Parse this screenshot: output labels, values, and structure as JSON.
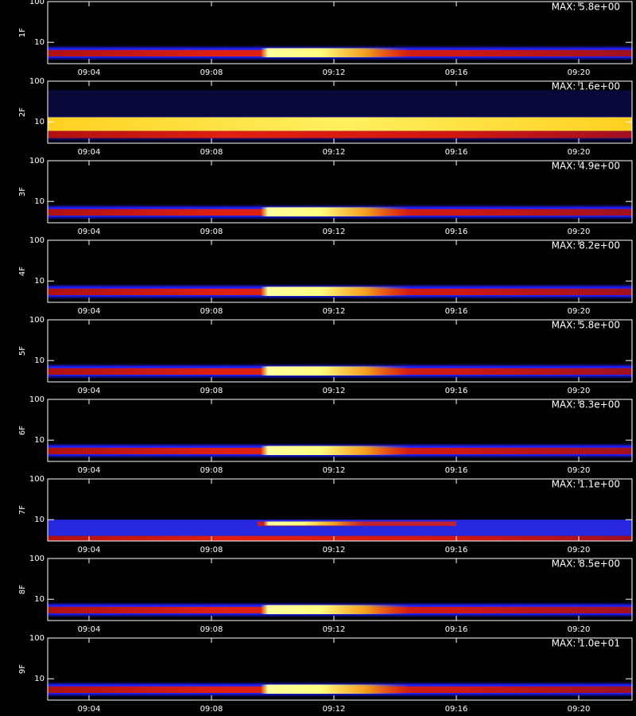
{
  "chart_data": [
    {
      "type": "spectrogram",
      "ylabel": "1F",
      "max_label": "MAX: 5.8e+00",
      "log_scale": true,
      "ylim": [
        3,
        100
      ],
      "yticks": [
        10,
        100
      ],
      "xlim": [
        542.65,
        561.74
      ],
      "xticks": [
        {
          "value": 544,
          "label": "09:04"
        },
        {
          "value": 548,
          "label": "09:08"
        },
        {
          "value": 552,
          "label": "09:12"
        },
        {
          "value": 556,
          "label": "09:16"
        },
        {
          "value": 560,
          "label": "09:20"
        }
      ]
    },
    {
      "type": "spectrogram",
      "ylabel": "2F",
      "max_label": "MAX: 1.6e+00",
      "log_scale": true,
      "ylim": [
        3,
        100
      ],
      "yticks": [
        10,
        100
      ],
      "xlim": [
        542.65,
        561.74
      ],
      "xticks": [
        {
          "value": 544,
          "label": "09:04"
        },
        {
          "value": 548,
          "label": "09:08"
        },
        {
          "value": 552,
          "label": "09:12"
        },
        {
          "value": 556,
          "label": "09:16"
        },
        {
          "value": 560,
          "label": "09:20"
        }
      ]
    },
    {
      "type": "spectrogram",
      "ylabel": "3F",
      "max_label": "MAX: 4.9e+00",
      "log_scale": true,
      "ylim": [
        3,
        100
      ],
      "yticks": [
        10,
        100
      ],
      "xlim": [
        542.65,
        561.74
      ],
      "xticks": [
        {
          "value": 544,
          "label": "09:04"
        },
        {
          "value": 548,
          "label": "09:08"
        },
        {
          "value": 552,
          "label": "09:12"
        },
        {
          "value": 556,
          "label": "09:16"
        },
        {
          "value": 560,
          "label": "09:20"
        }
      ]
    },
    {
      "type": "spectrogram",
      "ylabel": "4F",
      "max_label": "MAX: 8.2e+00",
      "log_scale": true,
      "ylim": [
        3,
        100
      ],
      "yticks": [
        10,
        100
      ],
      "xlim": [
        542.65,
        561.74
      ],
      "xticks": [
        {
          "value": 544,
          "label": "09:04"
        },
        {
          "value": 548,
          "label": "09:08"
        },
        {
          "value": 552,
          "label": "09:12"
        },
        {
          "value": 556,
          "label": "09:16"
        },
        {
          "value": 560,
          "label": "09:20"
        }
      ]
    },
    {
      "type": "spectrogram",
      "ylabel": "5F",
      "max_label": "MAX: 5.8e+00",
      "log_scale": true,
      "ylim": [
        3,
        100
      ],
      "yticks": [
        10,
        100
      ],
      "xlim": [
        542.65,
        561.74
      ],
      "xticks": [
        {
          "value": 544,
          "label": "09:04"
        },
        {
          "value": 548,
          "label": "09:08"
        },
        {
          "value": 552,
          "label": "09:12"
        },
        {
          "value": 556,
          "label": "09:16"
        },
        {
          "value": 560,
          "label": "09:20"
        }
      ]
    },
    {
      "type": "spectrogram",
      "ylabel": "6F",
      "max_label": "MAX: 8.3e+00",
      "log_scale": true,
      "ylim": [
        3,
        100
      ],
      "yticks": [
        10,
        100
      ],
      "xlim": [
        542.65,
        561.74
      ],
      "xticks": [
        {
          "value": 544,
          "label": "09:04"
        },
        {
          "value": 548,
          "label": "09:08"
        },
        {
          "value": 552,
          "label": "09:12"
        },
        {
          "value": 556,
          "label": "09:16"
        },
        {
          "value": 560,
          "label": "09:20"
        }
      ]
    },
    {
      "type": "spectrogram",
      "ylabel": "7F",
      "max_label": "MAX: 1.1e+00",
      "log_scale": true,
      "ylim": [
        3,
        100
      ],
      "yticks": [
        10,
        100
      ],
      "xlim": [
        542.65,
        561.74
      ],
      "xticks": [
        {
          "value": 544,
          "label": "09:04"
        },
        {
          "value": 548,
          "label": "09:08"
        },
        {
          "value": 552,
          "label": "09:12"
        },
        {
          "value": 556,
          "label": "09:16"
        },
        {
          "value": 560,
          "label": "09:20"
        }
      ]
    },
    {
      "type": "spectrogram",
      "ylabel": "8F",
      "max_label": "MAX: 8.5e+00",
      "log_scale": true,
      "ylim": [
        3,
        100
      ],
      "yticks": [
        10,
        100
      ],
      "xlim": [
        542.65,
        561.74
      ],
      "xticks": [
        {
          "value": 544,
          "label": "09:04"
        },
        {
          "value": 548,
          "label": "09:08"
        },
        {
          "value": 552,
          "label": "09:12"
        },
        {
          "value": 556,
          "label": "09:16"
        },
        {
          "value": 560,
          "label": "09:20"
        }
      ]
    },
    {
      "type": "spectrogram",
      "ylabel": "9F",
      "max_label": "MAX: 1.0e+01",
      "log_scale": true,
      "ylim": [
        3,
        100
      ],
      "yticks": [
        10,
        100
      ],
      "xlim": [
        542.65,
        561.74
      ],
      "xticks": [
        {
          "value": 544,
          "label": "09:04"
        },
        {
          "value": 548,
          "label": "09:08"
        },
        {
          "value": 552,
          "label": "09:12"
        },
        {
          "value": 556,
          "label": "09:16"
        },
        {
          "value": 560,
          "label": "09:20"
        }
      ]
    }
  ]
}
